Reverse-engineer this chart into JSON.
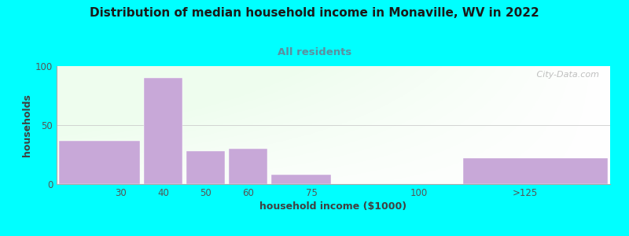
{
  "title": "Distribution of median household income in Monaville, WV in 2022",
  "subtitle": "All residents",
  "xlabel": "household income ($1000)",
  "ylabel": "households",
  "background_color": "#00FFFF",
  "bar_color": "#C8A8D8",
  "categories": [
    "30",
    "40",
    "50",
    "60",
    "75",
    "100",
    ">125"
  ],
  "values": [
    37,
    90,
    28,
    30,
    8,
    0,
    22
  ],
  "ylim": [
    0,
    100
  ],
  "yticks": [
    0,
    50,
    100
  ],
  "title_fontsize": 11,
  "subtitle_fontsize": 9.5,
  "axis_label_fontsize": 9,
  "tick_fontsize": 8.5,
  "watermark": " City-Data.com",
  "title_color": "#1a1a1a",
  "subtitle_color": "#5B8FA0",
  "xlabel_color": "#404040",
  "ylabel_color": "#404040",
  "tick_color": "#555555",
  "spine_color": "#aaaaaa",
  "grid_color": "#dddddd",
  "bar_left_edges": [
    15,
    35,
    45,
    55,
    65,
    80,
    110
  ],
  "bar_right_edges": [
    35,
    45,
    55,
    65,
    80,
    110,
    145
  ],
  "x_tick_positions": [
    30,
    40,
    50,
    60,
    75,
    100,
    125
  ],
  "xlim": [
    15,
    145
  ]
}
